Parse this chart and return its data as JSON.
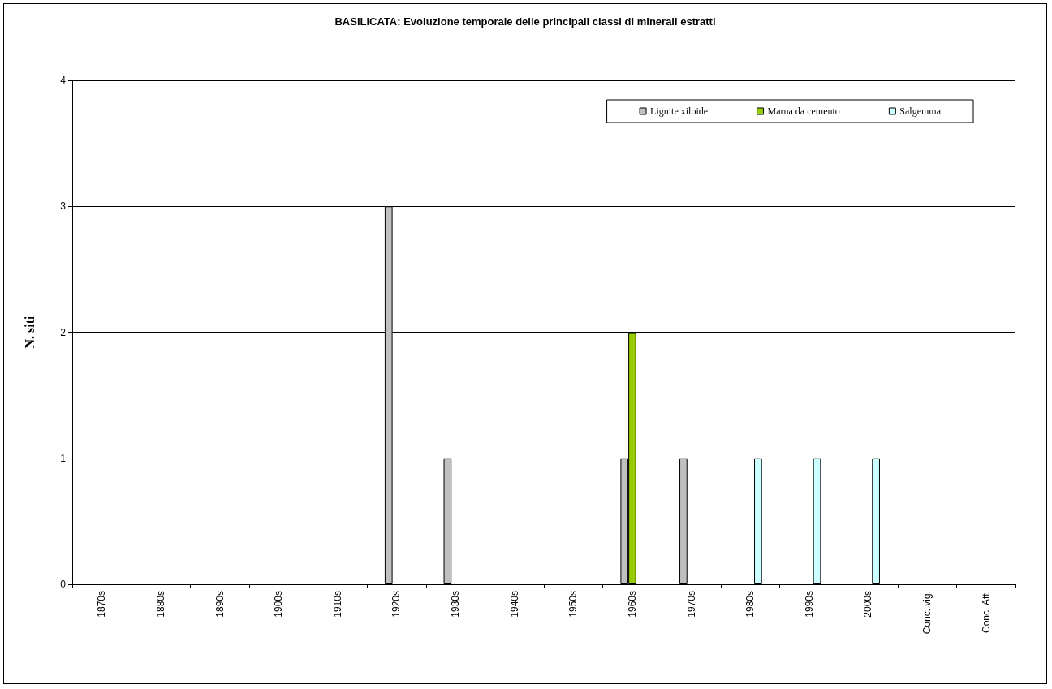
{
  "chart_data": {
    "type": "bar",
    "title": "BASILICATA: Evoluzione temporale delle principali classi di minerali estratti",
    "ylabel": "N. siti",
    "categories": [
      "1870s",
      "1880s",
      "1890s",
      "1900s",
      "1910s",
      "1920s",
      "1930s",
      "1940s",
      "1950s",
      "1960s",
      "1970s",
      "1980s",
      "1990s",
      "2000s",
      "Conc. vig.",
      "Conc. Att."
    ],
    "series": [
      {
        "name": "Lignite xiloide",
        "color": "#c0c0c0",
        "values": [
          0,
          0,
          0,
          0,
          0,
          3,
          1,
          0,
          0,
          1,
          1,
          0,
          0,
          0,
          0,
          0
        ]
      },
      {
        "name": "Marna da cemento",
        "color": "#99cc00",
        "values": [
          0,
          0,
          0,
          0,
          0,
          0,
          0,
          0,
          0,
          2,
          0,
          0,
          0,
          0,
          0,
          0
        ]
      },
      {
        "name": "Salgemma",
        "color": "#ccffff",
        "values": [
          0,
          0,
          0,
          0,
          0,
          0,
          0,
          0,
          0,
          0,
          0,
          1,
          1,
          1,
          0,
          0
        ]
      }
    ],
    "ylim": [
      0,
      4
    ],
    "yticks": [
      0,
      1,
      2,
      3,
      4
    ],
    "grid": "y",
    "legend": "top right"
  }
}
